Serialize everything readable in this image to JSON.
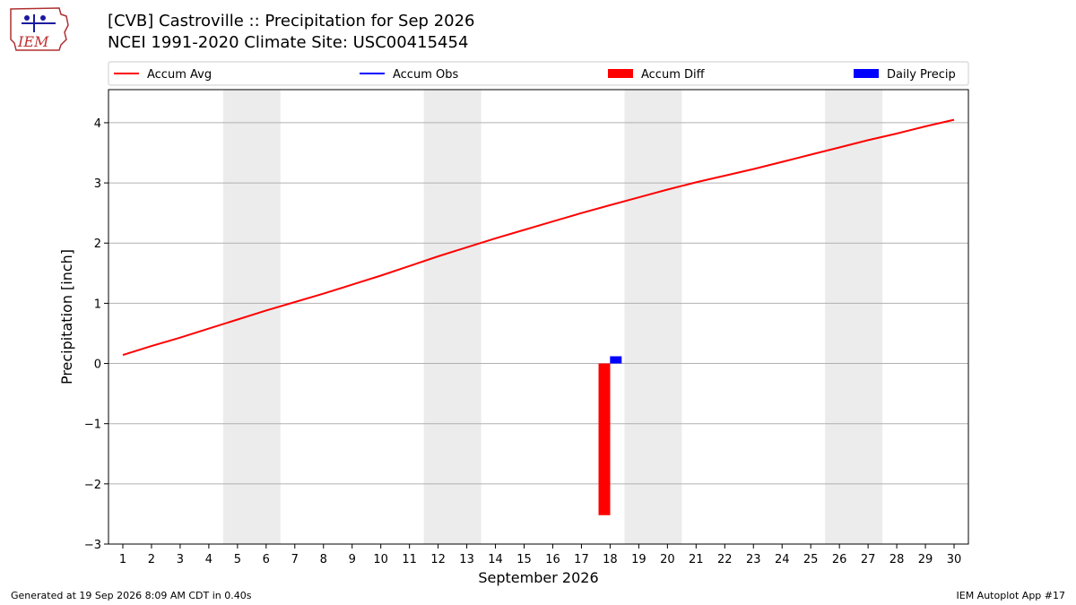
{
  "header": {
    "title_line1": "[CVB] Castroville :: Precipitation for Sep 2026",
    "title_line2": "NCEI 1991-2020 Climate Site: USC00415454"
  },
  "logo": {
    "text": "IEM",
    "icon": "iem-logo-icon"
  },
  "footer": {
    "generated": "Generated at 19 Sep 2026 8:09 AM CDT in 0.40s",
    "app": "IEM Autoplot App #17"
  },
  "colors": {
    "accum_avg": "#ff0000",
    "accum_obs": "#0000ff",
    "accum_diff": "#ff0000",
    "daily_precip": "#0000ff",
    "weekend_shade": "#ececec",
    "grid": "#b0b0b0"
  },
  "chart_data": {
    "type": "line",
    "xlabel": "September 2026",
    "ylabel": "Precipitation [inch]",
    "xlim": [
      0.5,
      30.5
    ],
    "ylim": [
      -3.0,
      4.55
    ],
    "yticks": [
      -3,
      -2,
      -1,
      0,
      1,
      2,
      3,
      4
    ],
    "ytick_labels": [
      "−3",
      "−2",
      "−1",
      "0",
      "1",
      "2",
      "3",
      "4"
    ],
    "xticks": [
      1,
      2,
      3,
      4,
      5,
      6,
      7,
      8,
      9,
      10,
      11,
      12,
      13,
      14,
      15,
      16,
      17,
      18,
      19,
      20,
      21,
      22,
      23,
      24,
      25,
      26,
      27,
      28,
      29,
      30
    ],
    "grid": "horizontal",
    "legend_placement": "top",
    "legend": [
      "Accum Avg",
      "Accum Obs",
      "Accum Diff",
      "Daily Precip"
    ],
    "weekend_bands": [
      [
        4.5,
        6.5
      ],
      [
        11.5,
        13.5
      ],
      [
        18.5,
        20.5
      ],
      [
        25.5,
        27.5
      ]
    ],
    "series": [
      {
        "name": "Accum Avg",
        "kind": "line",
        "x": [
          1,
          2,
          3,
          4,
          5,
          6,
          7,
          8,
          9,
          10,
          11,
          12,
          13,
          14,
          15,
          16,
          17,
          18,
          19,
          20,
          21,
          22,
          23,
          24,
          25,
          26,
          27,
          28,
          29,
          30
        ],
        "values": [
          0.14,
          0.29,
          0.43,
          0.58,
          0.73,
          0.88,
          1.02,
          1.16,
          1.31,
          1.46,
          1.62,
          1.78,
          1.93,
          2.08,
          2.22,
          2.36,
          2.5,
          2.63,
          2.76,
          2.89,
          3.01,
          3.12,
          3.23,
          3.35,
          3.47,
          3.59,
          3.71,
          3.82,
          3.94,
          4.05
        ]
      },
      {
        "name": "Accum Obs",
        "kind": "line",
        "x": [],
        "values": []
      },
      {
        "name": "Accum Diff",
        "kind": "bar",
        "x": [
          17.8
        ],
        "values": [
          -2.52
        ]
      },
      {
        "name": "Daily Precip",
        "kind": "bar",
        "x": [
          18.2
        ],
        "values": [
          0.12
        ]
      }
    ]
  }
}
